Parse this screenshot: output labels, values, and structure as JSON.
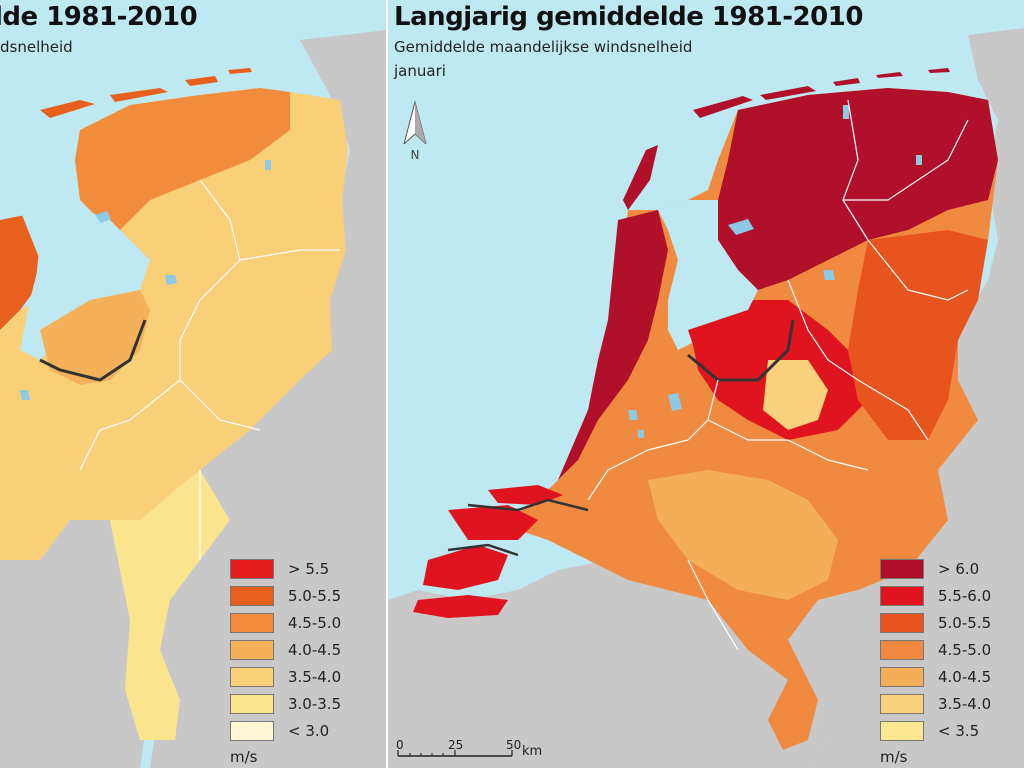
{
  "colors": {
    "sea": "#bfe9f2",
    "land_outside": "#c8c8c8",
    "lakes": "#8ec9e6"
  },
  "left_panel": {
    "title": "lde 1981-2010",
    "subtitle": "dsnelheid",
    "legend": {
      "unit": "m/s",
      "classes": [
        {
          "label": "> 5.5",
          "color": "#e21a1c"
        },
        {
          "label": "5.0-5.5",
          "color": "#e8601e"
        },
        {
          "label": "4.5-5.0",
          "color": "#f08c3c"
        },
        {
          "label": "4.0-4.5",
          "color": "#f5b05a"
        },
        {
          "label": "3.5-4.0",
          "color": "#f9cf78"
        },
        {
          "label": "3.0-3.5",
          "color": "#fbe48e"
        },
        {
          "label": "< 3.0",
          "color": "#fdf6d4"
        }
      ]
    }
  },
  "right_panel": {
    "title": "Langjarig gemiddelde 1981-2010",
    "subtitle_line1": "Gemiddelde maandelijkse windsnelheid",
    "subtitle_line2": "januari",
    "north_label": "N",
    "legend": {
      "unit": "m/s",
      "classes": [
        {
          "label": "> 6.0",
          "color": "#b0102a"
        },
        {
          "label": "5.5-6.0",
          "color": "#e0141e"
        },
        {
          "label": "5.0-5.5",
          "color": "#e8541e"
        },
        {
          "label": "4.5-5.0",
          "color": "#f08a40"
        },
        {
          "label": "4.0-4.5",
          "color": "#f5ae58"
        },
        {
          "label": "3.5-4.0",
          "color": "#f9d17c"
        },
        {
          "label": "< 3.5",
          "color": "#fbe890"
        }
      ]
    },
    "scalebar": {
      "ticks": [
        "0",
        "25",
        "50"
      ],
      "unit": "km"
    }
  }
}
